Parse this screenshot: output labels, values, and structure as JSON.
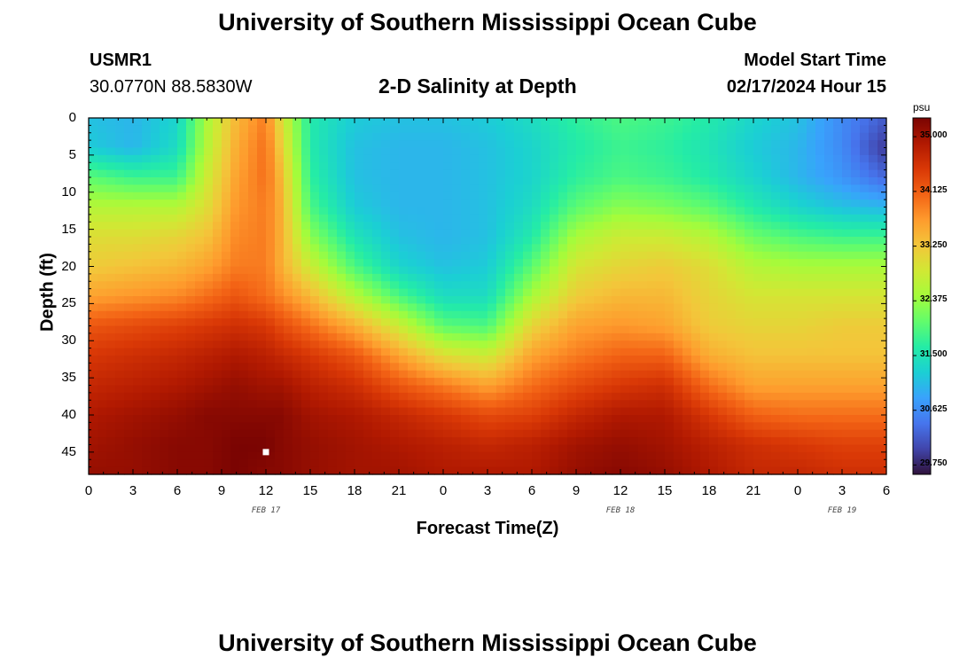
{
  "header": {
    "title": "University of Southern Mississippi Ocean Cube",
    "station_id": "USMR1",
    "coordinates": "30.0770N  88.5830W",
    "plot_title": "2-D Salinity at Depth",
    "model_start_label": "Model Start Time",
    "model_start_value": "02/17/2024 Hour 15"
  },
  "footer": {
    "title": "University of Southern Mississippi Ocean Cube"
  },
  "chart_data": {
    "type": "heatmap",
    "title": "2-D Salinity at Depth",
    "xlabel": "Forecast Time(Z)",
    "ylabel": "Depth (ft)",
    "x_tick_labels": [
      "0",
      "3",
      "6",
      "9",
      "12",
      "15",
      "18",
      "21",
      "0",
      "3",
      "6",
      "9",
      "12",
      "15",
      "18",
      "21",
      "0",
      "3",
      "6"
    ],
    "x_date_labels": [
      {
        "label": "FEB 17",
        "at_tick": 4
      },
      {
        "label": "FEB 18",
        "at_tick": 12
      },
      {
        "label": "FEB 19",
        "at_tick": 17
      }
    ],
    "y_tick_labels": [
      "0",
      "5",
      "10",
      "15",
      "20",
      "25",
      "30",
      "35",
      "40",
      "45"
    ],
    "ylim": [
      0,
      48
    ],
    "xlim_hours": [
      0,
      54
    ],
    "colorbar": {
      "unit": "psu",
      "tick_labels": [
        "35.000",
        "34.125",
        "33.250",
        "32.375",
        "31.500",
        "30.625",
        "29.750"
      ],
      "range": [
        29.6,
        35.3
      ],
      "colors": [
        "#30123b",
        "#4145ab",
        "#4675ed",
        "#39a2fc",
        "#1bcfd4",
        "#24eca6",
        "#61fc6c",
        "#a4fc3b",
        "#d1e834",
        "#f3c63a",
        "#fe9b2d",
        "#f36315",
        "#d93806",
        "#b11901",
        "#7a0402"
      ]
    },
    "salinity_profiles": {
      "depths_ft": [
        0,
        4,
        8,
        12,
        16,
        20,
        24,
        28,
        32,
        36,
        40,
        44,
        48
      ],
      "columns": [
        {
          "hour": 0,
          "values": [
            31.1,
            31.2,
            32.0,
            32.6,
            33.0,
            33.2,
            33.6,
            34.2,
            34.5,
            34.7,
            34.9,
            35.0,
            35.1
          ]
        },
        {
          "hour": 3,
          "values": [
            31.0,
            31.0,
            31.8,
            32.6,
            33.0,
            33.3,
            33.7,
            34.3,
            34.6,
            34.8,
            35.0,
            35.1,
            35.1
          ]
        },
        {
          "hour": 6,
          "values": [
            31.3,
            31.4,
            31.8,
            32.6,
            33.1,
            33.4,
            33.8,
            34.4,
            34.7,
            34.9,
            35.1,
            35.2,
            35.2
          ]
        },
        {
          "hour": 8,
          "values": [
            32.5,
            32.6,
            32.8,
            33.0,
            33.3,
            33.6,
            34.0,
            34.5,
            34.8,
            35.0,
            35.2,
            35.2,
            35.2
          ]
        },
        {
          "hour": 10,
          "values": [
            33.4,
            33.5,
            33.6,
            33.7,
            33.8,
            33.9,
            34.2,
            34.6,
            34.9,
            35.1,
            35.2,
            35.3,
            35.3
          ]
        },
        {
          "hour": 12,
          "values": [
            33.9,
            34.0,
            34.0,
            33.9,
            33.9,
            33.9,
            34.0,
            34.5,
            34.8,
            35.0,
            35.2,
            35.3,
            35.2
          ]
        },
        {
          "hour": 13,
          "values": [
            33.0,
            33.2,
            33.4,
            33.5,
            33.5,
            33.5,
            33.8,
            34.3,
            34.7,
            35.0,
            35.2,
            35.2,
            35.2
          ]
        },
        {
          "hour": 15,
          "values": [
            31.6,
            31.6,
            31.7,
            31.9,
            32.3,
            32.8,
            33.4,
            34.0,
            34.5,
            34.8,
            35.0,
            35.1,
            35.1
          ]
        },
        {
          "hour": 18,
          "values": [
            31.2,
            31.1,
            31.1,
            31.2,
            31.5,
            31.9,
            32.6,
            33.5,
            34.2,
            34.6,
            34.9,
            35.0,
            35.0
          ]
        },
        {
          "hour": 21,
          "values": [
            31.1,
            31.0,
            31.0,
            31.0,
            31.1,
            31.3,
            31.9,
            32.8,
            33.6,
            34.2,
            34.7,
            34.9,
            35.0
          ]
        },
        {
          "hour": 24,
          "values": [
            31.1,
            31.0,
            31.0,
            31.0,
            31.0,
            31.1,
            31.4,
            32.0,
            33.0,
            33.9,
            34.5,
            34.8,
            34.9
          ]
        },
        {
          "hour": 27,
          "values": [
            31.2,
            31.1,
            31.1,
            31.1,
            31.1,
            31.2,
            31.4,
            31.9,
            32.8,
            33.6,
            34.3,
            34.7,
            34.9
          ]
        },
        {
          "hour": 30,
          "values": [
            31.4,
            31.3,
            31.3,
            31.4,
            31.6,
            32.0,
            32.5,
            33.1,
            33.6,
            34.0,
            34.4,
            34.8,
            34.9
          ]
        },
        {
          "hour": 33,
          "values": [
            31.7,
            31.6,
            31.7,
            32.0,
            32.5,
            32.9,
            33.2,
            33.6,
            33.9,
            34.3,
            34.7,
            35.0,
            35.1
          ]
        },
        {
          "hour": 36,
          "values": [
            31.9,
            31.8,
            31.9,
            32.3,
            32.8,
            33.1,
            33.4,
            33.7,
            34.1,
            34.5,
            34.9,
            35.1,
            35.2
          ]
        },
        {
          "hour": 39,
          "values": [
            31.8,
            31.7,
            31.8,
            32.2,
            32.8,
            33.2,
            33.4,
            33.6,
            34.1,
            34.6,
            34.9,
            35.0,
            35.1
          ]
        },
        {
          "hour": 42,
          "values": [
            31.6,
            31.5,
            31.6,
            32.0,
            32.6,
            33.0,
            33.1,
            33.2,
            33.5,
            34.0,
            34.5,
            34.8,
            34.9
          ]
        },
        {
          "hour": 45,
          "values": [
            31.3,
            31.2,
            31.3,
            31.6,
            32.1,
            32.6,
            32.9,
            33.1,
            33.3,
            33.6,
            34.1,
            34.6,
            34.7
          ]
        },
        {
          "hour": 48,
          "values": [
            31.1,
            31.0,
            31.0,
            31.3,
            31.9,
            32.5,
            32.9,
            33.1,
            33.3,
            33.6,
            34.0,
            34.5,
            34.7
          ]
        },
        {
          "hour": 51,
          "values": [
            30.6,
            30.6,
            30.7,
            31.1,
            31.8,
            32.5,
            32.9,
            33.2,
            33.3,
            33.6,
            34.0,
            34.4,
            34.6
          ]
        },
        {
          "hour": 54,
          "values": [
            30.2,
            29.9,
            30.3,
            31.0,
            31.8,
            32.5,
            32.9,
            33.2,
            33.3,
            33.6,
            34.0,
            34.4,
            34.6
          ]
        }
      ]
    },
    "markers": [
      {
        "hour": 12,
        "depth_ft": 45,
        "color": "#ffffff"
      }
    ]
  }
}
